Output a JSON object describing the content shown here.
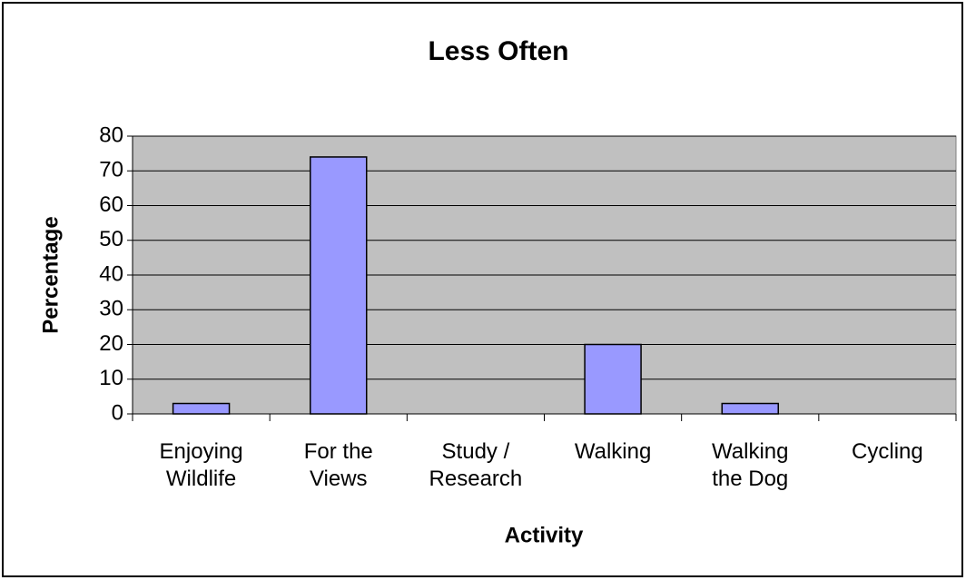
{
  "chart_data": {
    "type": "bar",
    "title": "Less Often",
    "x_label": "Activity",
    "y_label": "Percentage",
    "categories": [
      "Enjoying Wildlife",
      "For the Views",
      "Study / Research",
      "Walking",
      "Walking the Dog",
      "Cycling"
    ],
    "values": [
      3,
      74,
      0,
      20,
      3,
      0
    ],
    "color": "#9999ff",
    "ylim": [
      0,
      80
    ],
    "yticks": [
      0,
      10,
      20,
      30,
      40,
      50,
      60,
      70,
      80
    ],
    "grid": true
  }
}
